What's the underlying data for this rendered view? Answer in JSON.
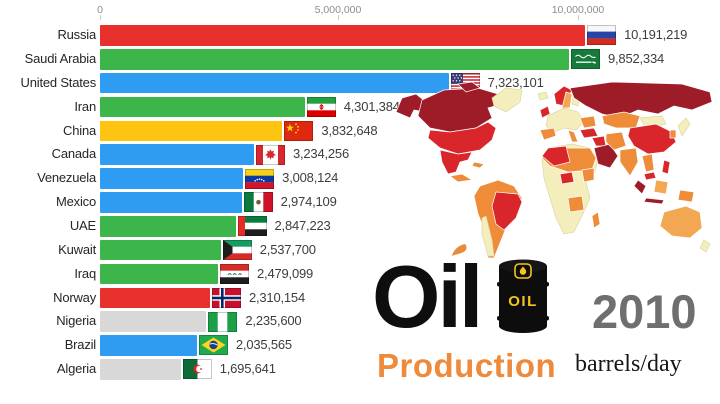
{
  "branding": {
    "title_word": "Oil",
    "subtitle_word": "Production",
    "year": "2010",
    "unit": "barrels/day",
    "barrel_text": "OIL"
  },
  "icons": {
    "barrel": "oil-barrel-icon",
    "drip": "oil-drip-icon",
    "map": "world-map-choropleth"
  },
  "axis": {
    "ticks": [
      {
        "label": "0",
        "value": 0
      },
      {
        "label": "5,000,000",
        "value": 5000000
      },
      {
        "label": "10,000,000",
        "value": 10000000
      }
    ]
  },
  "palette": {
    "red": "#e8312d",
    "green": "#3cb54b",
    "blue": "#2f9bf1",
    "yellow": "#fdc511",
    "gray": "#d8d8d8"
  },
  "map_palette": {
    "none": "#f4eebc",
    "low": "#f2a852",
    "mid": "#ee8c3a",
    "high": "#d8262b",
    "highest": "#9e1c28"
  },
  "chart_data": {
    "type": "bar",
    "orientation": "horizontal",
    "title": "Oil Production",
    "year": "2010",
    "unit": "barrels/day",
    "xlim": [
      0,
      11765000
    ],
    "grid": false,
    "x_tick_labels": [
      "0",
      "5,000,000",
      "10,000,000"
    ],
    "rows": [
      {
        "country": "Russia",
        "value": 10191219,
        "display": "10,191,219",
        "color": "red",
        "flag": "ru"
      },
      {
        "country": "Saudi Arabia",
        "value": 9852334,
        "display": "9,852,334",
        "color": "green",
        "flag": "sa"
      },
      {
        "country": "United States",
        "value": 7323101,
        "display": "7,323,101",
        "color": "blue",
        "flag": "us"
      },
      {
        "country": "Iran",
        "value": 4301384,
        "display": "4,301,384",
        "color": "green",
        "flag": "ir"
      },
      {
        "country": "China",
        "value": 3832648,
        "display": "3,832,648",
        "color": "yellow",
        "flag": "cn"
      },
      {
        "country": "Canada",
        "value": 3234256,
        "display": "3,234,256",
        "color": "blue",
        "flag": "ca"
      },
      {
        "country": "Venezuela",
        "value": 3008124,
        "display": "3,008,124",
        "color": "blue",
        "flag": "ve"
      },
      {
        "country": "Mexico",
        "value": 2974109,
        "display": "2,974,109",
        "color": "blue",
        "flag": "mx"
      },
      {
        "country": "UAE",
        "value": 2847223,
        "display": "2,847,223",
        "color": "green",
        "flag": "ae"
      },
      {
        "country": "Kuwait",
        "value": 2537700,
        "display": "2,537,700",
        "color": "green",
        "flag": "kw"
      },
      {
        "country": "Iraq",
        "value": 2479099,
        "display": "2,479,099",
        "color": "green",
        "flag": "iq"
      },
      {
        "country": "Norway",
        "value": 2310154,
        "display": "2,310,154",
        "color": "red",
        "flag": "no"
      },
      {
        "country": "Nigeria",
        "value": 2235600,
        "display": "2,235,600",
        "color": "gray",
        "flag": "ng"
      },
      {
        "country": "Brazil",
        "value": 2035565,
        "display": "2,035,565",
        "color": "blue",
        "flag": "br"
      },
      {
        "country": "Algeria",
        "value": 1695641,
        "display": "1,695,641",
        "color": "gray",
        "flag": "dz"
      }
    ]
  }
}
